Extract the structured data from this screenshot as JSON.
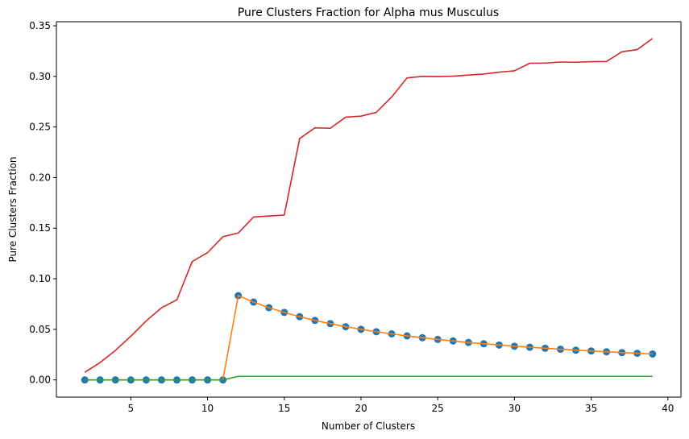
{
  "chart_data": {
    "type": "line",
    "title": "Pure Clusters Fraction for Alpha mus Musculus",
    "xlabel": "Number of Clusters",
    "ylabel": "Pure Clusters Fraction",
    "xlim": [
      0.15,
      40.85
    ],
    "ylim": [
      -0.017,
      0.354
    ],
    "xticks": [
      5,
      10,
      15,
      20,
      25,
      30,
      35,
      40
    ],
    "yticks": [
      0.0,
      0.05,
      0.1,
      0.15,
      0.2,
      0.25,
      0.3,
      0.35
    ],
    "ytick_labels": [
      "0.00",
      "0.05",
      "0.10",
      "0.15",
      "0.20",
      "0.25",
      "0.30",
      "0.35"
    ],
    "grid": false,
    "legend": "none",
    "x": [
      2,
      3,
      4,
      5,
      6,
      7,
      8,
      9,
      10,
      11,
      12,
      13,
      14,
      15,
      16,
      17,
      18,
      19,
      20,
      21,
      22,
      23,
      24,
      25,
      26,
      27,
      28,
      29,
      30,
      31,
      32,
      33,
      34,
      35,
      36,
      37,
      38,
      39
    ],
    "series": [
      {
        "style": "scatter",
        "color": "#1f77b4",
        "values": [
          0,
          0,
          0,
          0,
          0,
          0,
          0,
          0,
          0,
          0,
          0.0833,
          0.0769,
          0.0714,
          0.0667,
          0.0625,
          0.0588,
          0.0556,
          0.0526,
          0.05,
          0.0476,
          0.0455,
          0.0435,
          0.0417,
          0.04,
          0.0385,
          0.037,
          0.0357,
          0.0345,
          0.0333,
          0.0323,
          0.0313,
          0.0303,
          0.0294,
          0.0286,
          0.0278,
          0.027,
          0.0263,
          0.0256
        ]
      },
      {
        "style": "line",
        "color": "#ff7f0e",
        "values": [
          0,
          0,
          0,
          0,
          0,
          0,
          0,
          0,
          0,
          0,
          0.0833,
          0.0769,
          0.0714,
          0.0667,
          0.0625,
          0.0588,
          0.0556,
          0.0526,
          0.05,
          0.0476,
          0.0455,
          0.0435,
          0.0417,
          0.04,
          0.0385,
          0.037,
          0.0357,
          0.0345,
          0.0333,
          0.0323,
          0.0313,
          0.0303,
          0.0294,
          0.0286,
          0.0278,
          0.027,
          0.0263,
          0.0256
        ]
      },
      {
        "style": "line",
        "color": "#2ca02c",
        "values": [
          0,
          0,
          0,
          0,
          0,
          0,
          0,
          0,
          0,
          0,
          0.0035,
          0.0035,
          0.0035,
          0.0035,
          0.0035,
          0.0035,
          0.0035,
          0.0035,
          0.0035,
          0.0035,
          0.0035,
          0.0035,
          0.0035,
          0.0035,
          0.0035,
          0.0035,
          0.0035,
          0.0035,
          0.0035,
          0.0035,
          0.0035,
          0.0035,
          0.0035,
          0.0035,
          0.0035,
          0.0035,
          0.0035,
          0.0035
        ]
      },
      {
        "style": "line",
        "color": "#d62728",
        "values": [
          0.0075,
          0.0172,
          0.0292,
          0.0432,
          0.0583,
          0.0713,
          0.0792,
          0.117,
          0.1258,
          0.1415,
          0.1452,
          0.161,
          0.162,
          0.163,
          0.2385,
          0.2492,
          0.2487,
          0.2597,
          0.2607,
          0.2645,
          0.2797,
          0.2985,
          0.3,
          0.2998,
          0.3002,
          0.3013,
          0.3023,
          0.3042,
          0.3055,
          0.313,
          0.3132,
          0.3142,
          0.314,
          0.3145,
          0.3147,
          0.3243,
          0.3265,
          0.3375
        ]
      }
    ]
  }
}
